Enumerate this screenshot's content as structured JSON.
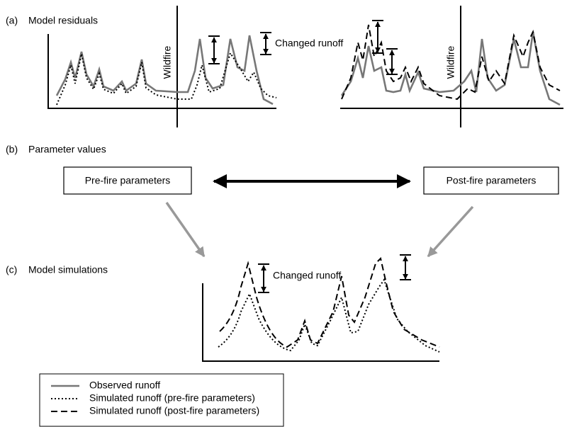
{
  "panels": [
    {
      "label": "(a)",
      "title": "Model residuals"
    },
    {
      "label": "(b)",
      "title": "Parameter values"
    },
    {
      "label": "(c)",
      "title": "Model simulations"
    }
  ],
  "wildfire_labels": [
    "Wildfire",
    "Wildfire"
  ],
  "changed_runoff_labels": [
    "Changed runoff",
    "Changed runoff"
  ],
  "boxes": [
    "Pre-fire parameters",
    "Post-fire parameters"
  ],
  "legend": [
    "Observed runoff",
    "Simulated runoff (pre-fire parameters)",
    "Simulated runoff (post-fire parameters)"
  ]
}
